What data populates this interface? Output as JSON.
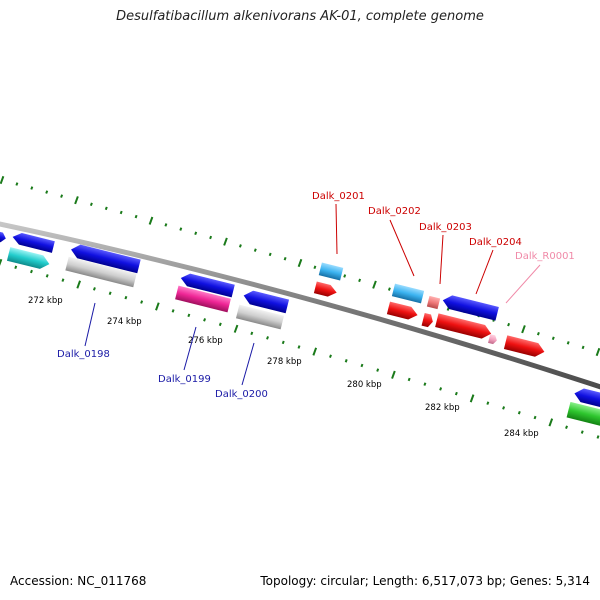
{
  "title": "Desulfatibacillum alkenivorans AK-01, complete genome",
  "footer": {
    "accession": "Accession: NC_011768",
    "summary": "Topology: circular; Length: 6,517,073 bp; Genes: 5,314"
  },
  "colors": {
    "backbone": "#808080",
    "ticks": "#1a7a1a",
    "label_blue": "#1a1aa6",
    "label_red": "#cc0000",
    "label_pink": "#f08aa8"
  },
  "ruler": [
    {
      "label": "272 kbp"
    },
    {
      "label": "274 kbp"
    },
    {
      "label": "276 kbp"
    },
    {
      "label": "278 kbp"
    },
    {
      "label": "280 kbp"
    },
    {
      "label": "282 kbp"
    },
    {
      "label": "284 kbp"
    }
  ],
  "gene_labels": [
    {
      "name": "Dalk_0198",
      "color": "#1a1aa6"
    },
    {
      "name": "Dalk_0199",
      "color": "#1a1aa6"
    },
    {
      "name": "Dalk_0200",
      "color": "#1a1aa6"
    },
    {
      "name": "Dalk_0201",
      "color": "#cc0000"
    },
    {
      "name": "Dalk_0202",
      "color": "#cc0000"
    },
    {
      "name": "Dalk_0203",
      "color": "#cc0000"
    },
    {
      "name": "Dalk_0204",
      "color": "#cc0000"
    },
    {
      "name": "Dalk_R0001",
      "color": "#f08aa8"
    }
  ]
}
